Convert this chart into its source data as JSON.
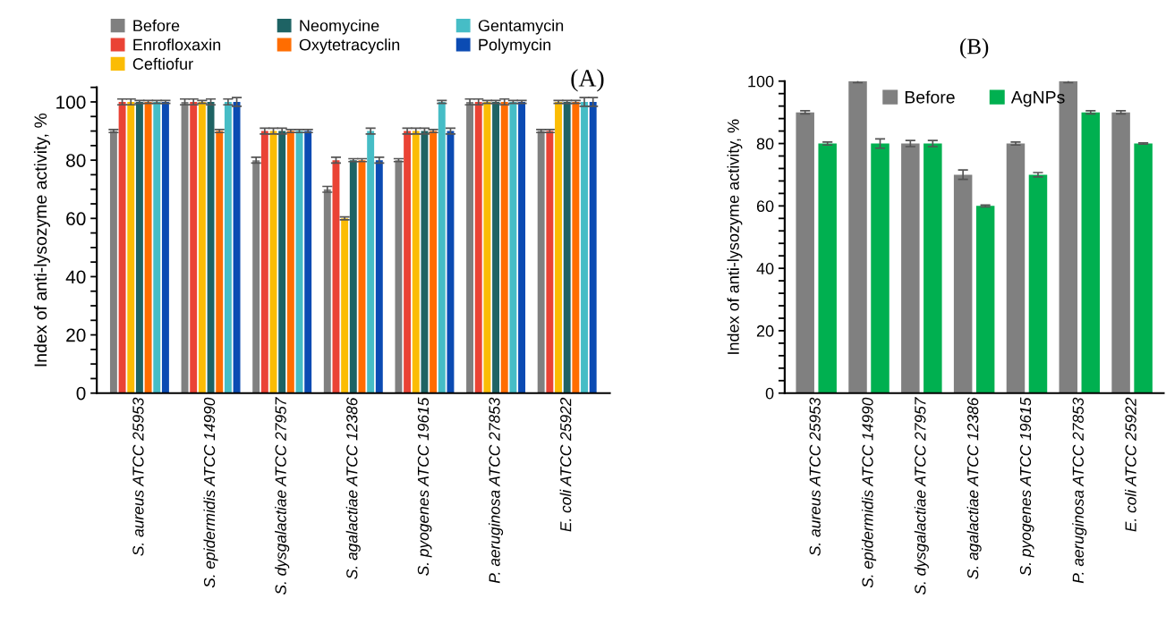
{
  "chart_data": [
    {
      "type": "bar",
      "title": "(A)",
      "ylabel": "Index of anti-lysozyme activity, %",
      "categories": [
        "S. aureus ATCC 25953",
        "S. epidermidis ATCC 14990",
        "S. dysgalactiae ATCC 27957",
        "S. agalactiae ATCC 12386",
        "S. pyogenes ATCC 19615",
        "P. aeruginosa ATCC 27853",
        "E. coli ATCC 25922"
      ],
      "series": [
        {
          "name": "Before",
          "color": "#808080",
          "values": [
            90,
            100,
            80,
            70,
            80,
            100,
            90
          ],
          "errors": [
            0.5,
            1,
            1,
            1,
            0.5,
            1,
            0.5
          ]
        },
        {
          "name": "Enrofloxaxin",
          "color": "#ea4335",
          "values": [
            100,
            100,
            90,
            80,
            90,
            100,
            90
          ],
          "errors": [
            1,
            1,
            1,
            1,
            1,
            1,
            0.5
          ]
        },
        {
          "name": "Ceftiofur",
          "color": "#fbbc04",
          "values": [
            100,
            100,
            90,
            60,
            90,
            100,
            100
          ],
          "errors": [
            1,
            0.5,
            1,
            0.5,
            1,
            0.5,
            0.5
          ]
        },
        {
          "name": "Neomycine",
          "color": "#1e6364",
          "values": [
            100,
            100,
            90,
            80,
            90,
            100,
            100
          ],
          "errors": [
            0.5,
            1,
            1,
            0.5,
            1,
            0.5,
            0.5
          ]
        },
        {
          "name": "Oxytetracyclin",
          "color": "#ff6d01",
          "values": [
            100,
            90,
            90,
            80,
            90,
            100,
            100
          ],
          "errors": [
            0.5,
            0.5,
            0.5,
            0.5,
            0.5,
            1,
            0.5
          ]
        },
        {
          "name": "Gentamycin",
          "color": "#46bdc6",
          "values": [
            100,
            100,
            90,
            90,
            100,
            100,
            100
          ],
          "errors": [
            0.5,
            1,
            0.5,
            1,
            0.5,
            0.5,
            1.5
          ]
        },
        {
          "name": "Polymycin",
          "color": "#0b4bb3",
          "values": [
            100,
            100,
            90,
            80,
            90,
            100,
            100
          ],
          "errors": [
            0.5,
            1.5,
            0.5,
            1,
            1,
            0.5,
            1.5
          ]
        }
      ],
      "ylim": [
        0,
        105
      ],
      "yticks": [
        0,
        {
          "value": 5,
          "label": null
        },
        {
          "value": 10,
          "label": null
        },
        {
          "value": 15,
          "label": null
        },
        20,
        {
          "value": 25,
          "label": null
        },
        {
          "value": 30,
          "label": null
        },
        {
          "value": 35,
          "label": null
        },
        40,
        {
          "value": 45,
          "label": null
        },
        {
          "value": 50,
          "label": null
        },
        {
          "value": 55,
          "label": null
        },
        60,
        {
          "value": 65,
          "label": null
        },
        {
          "value": 70,
          "label": null
        },
        {
          "value": 75,
          "label": null
        },
        80,
        {
          "value": 85,
          "label": null
        },
        {
          "value": 90,
          "label": null
        },
        {
          "value": 95,
          "label": null
        },
        100,
        {
          "value": 105,
          "label": null
        }
      ],
      "legend": "top",
      "grid": false
    },
    {
      "type": "bar",
      "title": "(B)",
      "ylabel": "Index of anti-lysozyme activity, %",
      "categories": [
        "S. aureus ATCC 25953",
        "S. epidermidis ATCC 14990",
        "S. dysgalactiae ATCC 27957",
        "S. agalactiae ATCC 12386",
        "S. pyogenes ATCC 19615",
        "P. aeruginosa ATCC 27853",
        "E. coli ATCC 25922"
      ],
      "series": [
        {
          "name": "Before",
          "color": "#808080",
          "values": [
            90,
            100,
            80,
            70,
            80,
            100,
            90
          ],
          "errors": [
            0.5,
            0.5,
            1,
            1.5,
            0.5,
            0.5,
            0.5
          ]
        },
        {
          "name": "AgNPs",
          "color": "#00b050",
          "values": [
            80,
            80,
            80,
            60,
            70,
            90,
            80
          ],
          "errors": [
            0.5,
            1.5,
            1,
            0.3,
            0.7,
            0.5,
            0.2
          ]
        }
      ],
      "ylim": [
        0,
        100
      ],
      "yticks": [
        0,
        {
          "value": 4,
          "label": null
        },
        {
          "value": 8,
          "label": null
        },
        {
          "value": 12,
          "label": null
        },
        {
          "value": 16,
          "label": null
        },
        20,
        {
          "value": 24,
          "label": null
        },
        {
          "value": 28,
          "label": null
        },
        {
          "value": 32,
          "label": null
        },
        {
          "value": 36,
          "label": null
        },
        40,
        {
          "value": 44,
          "label": null
        },
        {
          "value": 48,
          "label": null
        },
        {
          "value": 52,
          "label": null
        },
        {
          "value": 56,
          "label": null
        },
        60,
        {
          "value": 64,
          "label": null
        },
        {
          "value": 68,
          "label": null
        },
        {
          "value": 72,
          "label": null
        },
        {
          "value": 76,
          "label": null
        },
        80,
        {
          "value": 84,
          "label": null
        },
        {
          "value": 88,
          "label": null
        },
        {
          "value": 92,
          "label": null
        },
        {
          "value": 96,
          "label": null
        },
        100
      ],
      "legend": "top",
      "grid": false
    }
  ]
}
